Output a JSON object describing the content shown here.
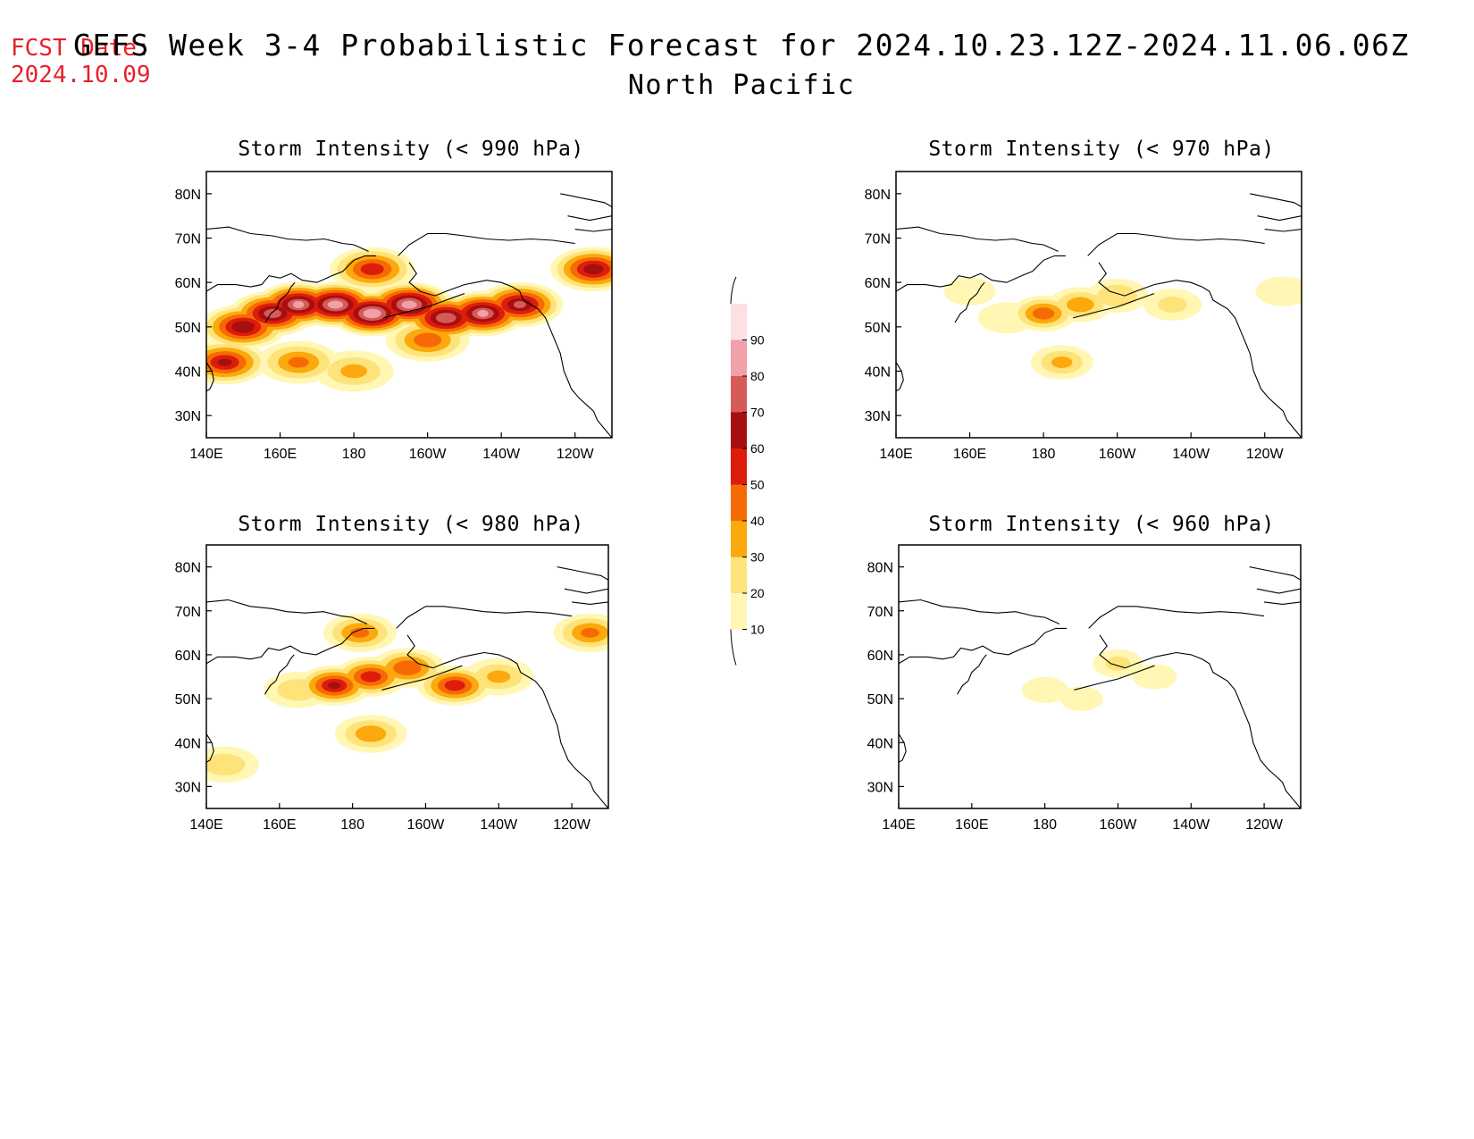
{
  "header": {
    "fcst_label": "FCST Date:",
    "fcst_date": "2024.10.09",
    "title": "GEFS Week 3-4 Probabilistic Forecast for 2024.10.23.12Z-2024.11.06.06Z",
    "region": "North Pacific"
  },
  "axes": {
    "lon_labels": [
      "140E",
      "160E",
      "180",
      "160W",
      "140W",
      "120W"
    ],
    "lat_labels": [
      "80N",
      "70N",
      "60N",
      "50N",
      "40N",
      "30N"
    ],
    "lon_values": [
      140,
      160,
      180,
      200,
      220,
      240
    ],
    "lat_values": [
      80,
      70,
      60,
      50,
      40,
      30
    ],
    "lon_range": [
      140,
      250
    ],
    "lat_range": [
      25,
      85
    ]
  },
  "colorbar": {
    "levels": [
      "10",
      "20",
      "30",
      "40",
      "50",
      "60",
      "70",
      "80",
      "90"
    ],
    "colors": [
      "#fff7b3",
      "#fde37a",
      "#fba90c",
      "#f66a06",
      "#de1c0c",
      "#a50f0f",
      "#d65a5a",
      "#f0a0a8",
      "#fde0e4"
    ]
  },
  "panels": [
    {
      "id": "p990",
      "title": "Storm Intensity (< 990 hPa)",
      "intensity": 4,
      "blobs": [
        {
          "lon": 150,
          "lat": 50,
          "p": 68
        },
        {
          "lon": 158,
          "lat": 53,
          "p": 75
        },
        {
          "lon": 165,
          "lat": 55,
          "p": 80
        },
        {
          "lon": 175,
          "lat": 55,
          "p": 85
        },
        {
          "lon": 185,
          "lat": 53,
          "p": 88
        },
        {
          "lon": 195,
          "lat": 55,
          "p": 85
        },
        {
          "lon": 205,
          "lat": 52,
          "p": 78
        },
        {
          "lon": 215,
          "lat": 53,
          "p": 80
        },
        {
          "lon": 225,
          "lat": 55,
          "p": 70
        },
        {
          "lon": 245,
          "lat": 63,
          "p": 65
        },
        {
          "lon": 185,
          "lat": 63,
          "p": 55
        },
        {
          "lon": 145,
          "lat": 42,
          "p": 60
        },
        {
          "lon": 165,
          "lat": 42,
          "p": 40
        },
        {
          "lon": 200,
          "lat": 47,
          "p": 45
        },
        {
          "lon": 180,
          "lat": 40,
          "p": 30
        }
      ]
    },
    {
      "id": "p970",
      "title": "Storm Intensity (< 970 hPa)",
      "intensity": 2,
      "blobs": [
        {
          "lon": 180,
          "lat": 53,
          "p": 45
        },
        {
          "lon": 190,
          "lat": 55,
          "p": 35
        },
        {
          "lon": 200,
          "lat": 57,
          "p": 28
        },
        {
          "lon": 215,
          "lat": 55,
          "p": 20
        },
        {
          "lon": 170,
          "lat": 52,
          "p": 18
        },
        {
          "lon": 185,
          "lat": 42,
          "p": 30
        },
        {
          "lon": 160,
          "lat": 58,
          "p": 12
        },
        {
          "lon": 245,
          "lat": 58,
          "p": 15
        }
      ]
    },
    {
      "id": "p980",
      "title": "Storm Intensity (< 980 hPa)",
      "intensity": 3,
      "blobs": [
        {
          "lon": 175,
          "lat": 53,
          "p": 60
        },
        {
          "lon": 185,
          "lat": 55,
          "p": 55
        },
        {
          "lon": 195,
          "lat": 57,
          "p": 48
        },
        {
          "lon": 208,
          "lat": 53,
          "p": 55
        },
        {
          "lon": 220,
          "lat": 55,
          "p": 30
        },
        {
          "lon": 165,
          "lat": 52,
          "p": 25
        },
        {
          "lon": 182,
          "lat": 65,
          "p": 40
        },
        {
          "lon": 245,
          "lat": 65,
          "p": 40
        },
        {
          "lon": 185,
          "lat": 42,
          "p": 35
        },
        {
          "lon": 145,
          "lat": 35,
          "p": 25
        }
      ]
    },
    {
      "id": "p960",
      "title": "Storm Intensity (< 960 hPa)",
      "intensity": 1,
      "blobs": [
        {
          "lon": 200,
          "lat": 58,
          "p": 20
        },
        {
          "lon": 180,
          "lat": 52,
          "p": 14
        },
        {
          "lon": 210,
          "lat": 55,
          "p": 12
        },
        {
          "lon": 190,
          "lat": 50,
          "p": 11
        }
      ]
    }
  ]
}
